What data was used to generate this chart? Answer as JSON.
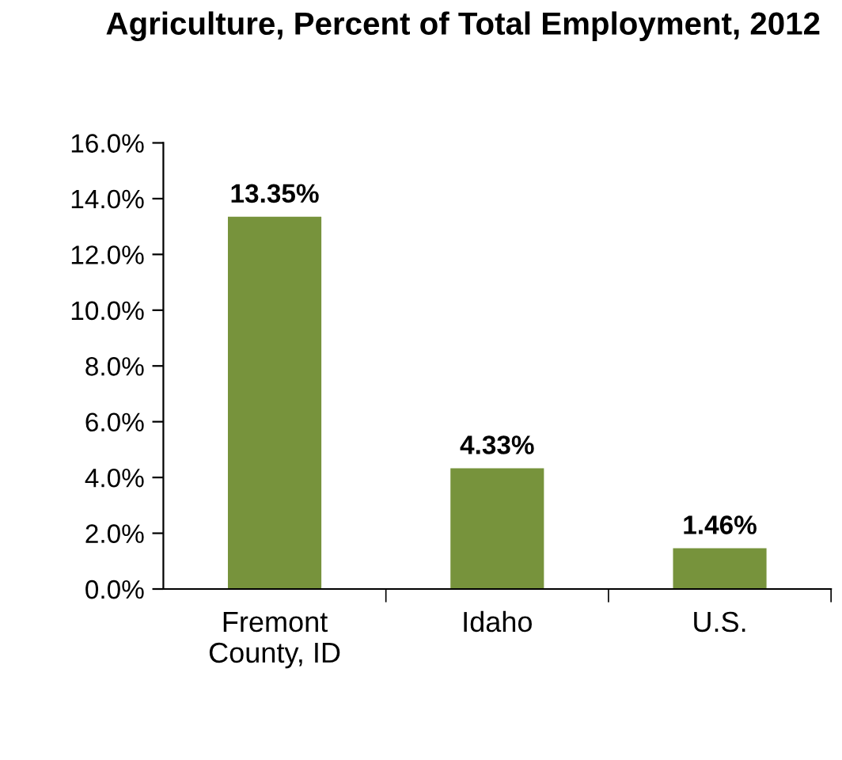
{
  "chart_data": {
    "type": "bar",
    "title": "Agriculture, Percent of Total Employment, 2012",
    "categories": [
      "Fremont\nCounty, ID",
      "Idaho",
      "U.S."
    ],
    "values": [
      13.35,
      4.33,
      1.46
    ],
    "value_labels": [
      "13.35%",
      "4.33%",
      "1.46%"
    ],
    "color": "#77933c",
    "ylim": [
      0,
      16
    ],
    "yticks": [
      {
        "value": 0,
        "label": "0.0%"
      },
      {
        "value": 2,
        "label": "2.0%"
      },
      {
        "value": 4,
        "label": "4.0%"
      },
      {
        "value": 6,
        "label": "6.0%"
      },
      {
        "value": 8,
        "label": "8.0%"
      },
      {
        "value": 10,
        "label": "10.0%"
      },
      {
        "value": 12,
        "label": "12.0%"
      },
      {
        "value": 14,
        "label": "14.0%"
      },
      {
        "value": 16,
        "label": "16.0%"
      }
    ],
    "grid": false,
    "legend": false
  }
}
